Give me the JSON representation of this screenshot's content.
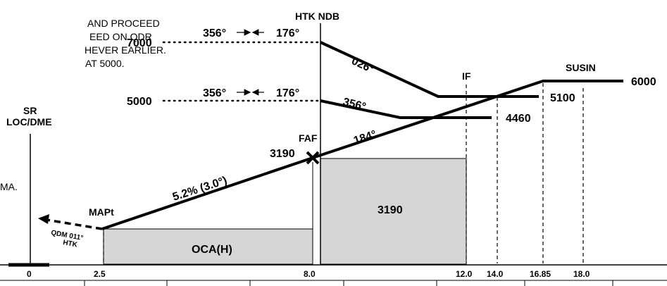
{
  "notes": [
    "AND PROCEED",
    "EED ON QDR",
    "HEVER EARLIER.",
    "AT 5000.",
    "MA."
  ],
  "fixes": {
    "htk_ndb": "HTK NDB",
    "sr_loc_dme_line1": "SR",
    "sr_loc_dme_line2": "LOC/DME",
    "faf": "FAF",
    "if": "IF",
    "susin": "SUSIN",
    "mapt": "MAPt"
  },
  "altitudes": {
    "alt_7000": "7000",
    "alt_5000": "5000",
    "alt_6000": "6000",
    "alt_5100": "5100",
    "alt_4460": "4460",
    "alt_3190_faf": "3190",
    "alt_3190_box": "3190"
  },
  "courses": {
    "upper_out": "356°",
    "upper_in": "176°",
    "lower_out": "356°",
    "lower_in": "176°",
    "crs_026": "026°",
    "crs_356": "356°",
    "crs_184": "184°",
    "glide": "5.2% (3.0°)",
    "qdm_line1": "QDM 011°",
    "qdm_line2": "HTK"
  },
  "oca_label": "OCA(H)",
  "distance_ticks": [
    "0",
    "2.5",
    "8.0",
    "12.0",
    "14.0",
    "16.85",
    "18.0"
  ]
}
